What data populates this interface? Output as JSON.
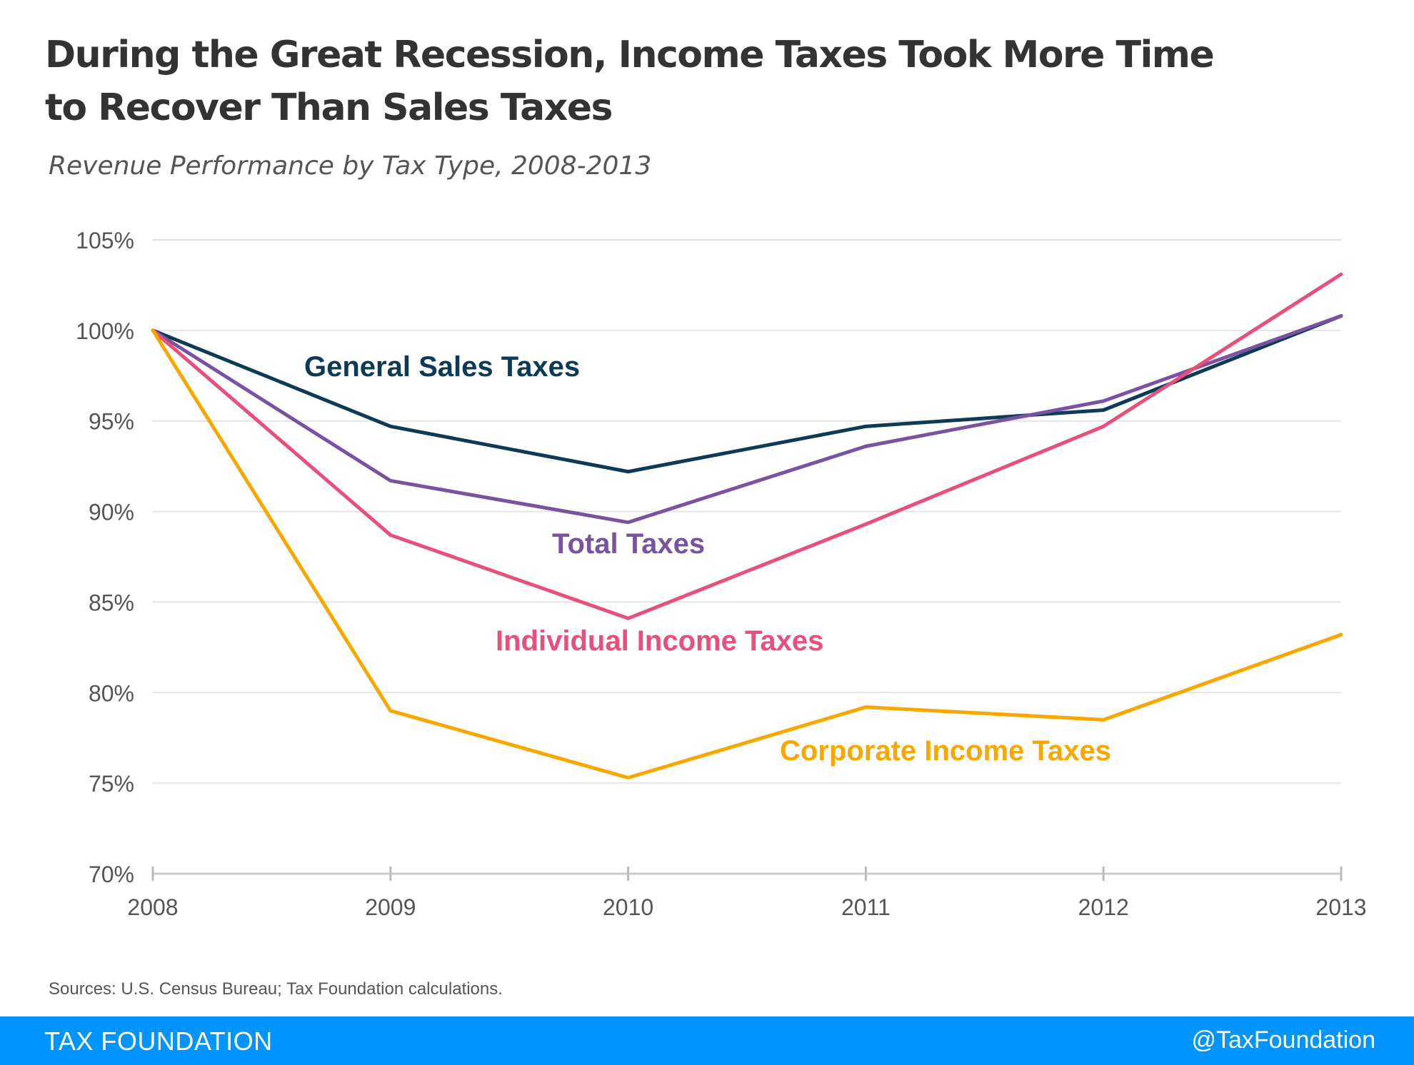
{
  "title_line1": "During the Great Recession, Income Taxes Took More Time",
  "title_line2": "to Recover Than Sales Taxes",
  "subtitle": "Revenue Performance by Tax Type, 2008-2013",
  "source": "Sources: U.S. Census Bureau; Tax Foundation calculations.",
  "footer": {
    "brand": "TAX FOUNDATION",
    "handle": "@TaxFoundation",
    "color": "#0094ff"
  },
  "chart_data": {
    "type": "line",
    "x": [
      "2008",
      "2009",
      "2010",
      "2011",
      "2012",
      "2013"
    ],
    "ylim": [
      70,
      105
    ],
    "yticks": [
      "105%",
      "100%",
      "95%",
      "90%",
      "85%",
      "80%",
      "75%",
      "70%"
    ],
    "ytick_values": [
      105,
      100,
      95,
      90,
      85,
      80,
      75,
      70
    ],
    "grid": true,
    "series": [
      {
        "name": "General Sales Taxes",
        "values": [
          100.0,
          94.7,
          92.2,
          94.7,
          95.6,
          100.8
        ],
        "color": "#0d3a55"
      },
      {
        "name": "Total Taxes",
        "values": [
          100.0,
          91.7,
          89.4,
          93.6,
          96.1,
          100.8
        ],
        "color": "#7a53a0"
      },
      {
        "name": "Individual Income Taxes",
        "values": [
          100.0,
          88.7,
          84.1,
          89.3,
          94.7,
          103.1
        ],
        "color": "#e6507a"
      },
      {
        "name": "Corporate Income Taxes",
        "values": [
          100.0,
          79.0,
          75.3,
          79.2,
          78.5,
          83.2
        ],
        "color": "#f7a700"
      }
    ]
  }
}
